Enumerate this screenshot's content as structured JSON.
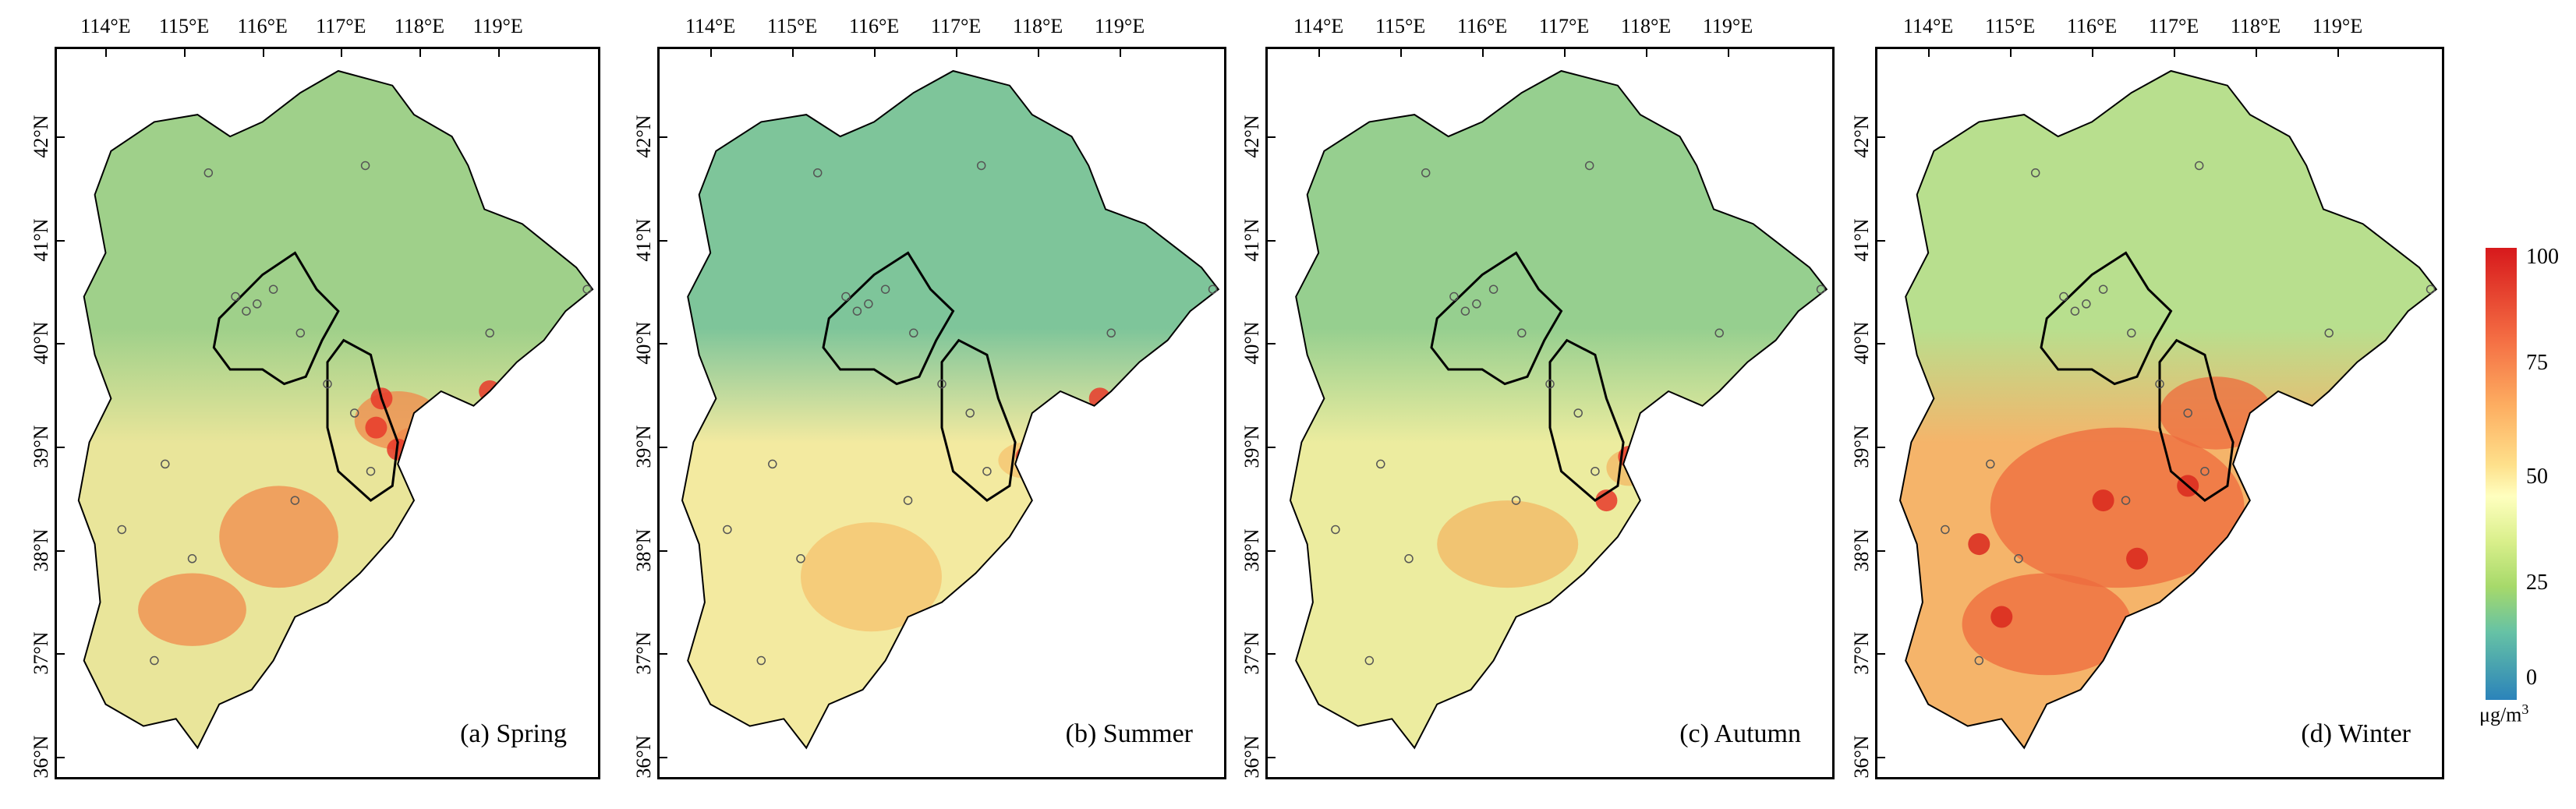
{
  "panels": [
    {
      "id": "a",
      "label": "(a) Spring"
    },
    {
      "id": "b",
      "label": "(b) Summer"
    },
    {
      "id": "c",
      "label": "(c) Autumn"
    },
    {
      "id": "d",
      "label": "(d) Winter"
    }
  ],
  "lon_ticks": [
    "114°E",
    "115°E",
    "116°E",
    "117°E",
    "118°E",
    "119°E"
  ],
  "lat_ticks": [
    "42°N",
    "41°N",
    "40°N",
    "39°N",
    "38°N",
    "37°N",
    "36°N"
  ],
  "colorbar": {
    "ticks": [
      "100",
      "75",
      "50",
      "25",
      "0"
    ],
    "unit": "μg/m",
    "unit_sup": "3",
    "colors": [
      "#d7191c",
      "#fdae61",
      "#ffffbf",
      "#a6d96a",
      "#2b83ba"
    ]
  },
  "seasons": {
    "a": {
      "base": "#e9e59a",
      "north": "#9fd08a",
      "hot": "#f08a4b",
      "hotspot": "#e8392a"
    },
    "b": {
      "base": "#f3eaa0",
      "north": "#7ec59a",
      "hot": "#f5c26d",
      "hotspot": "#e8392a"
    },
    "c": {
      "base": "#ecec9f",
      "north": "#96cf8f",
      "hot": "#f3b763",
      "hotspot": "#e8392a"
    },
    "d": {
      "base": "#f5b46a",
      "north": "#b8df8e",
      "hot": "#ee6b3e",
      "hotspot": "#d9281f"
    }
  }
}
